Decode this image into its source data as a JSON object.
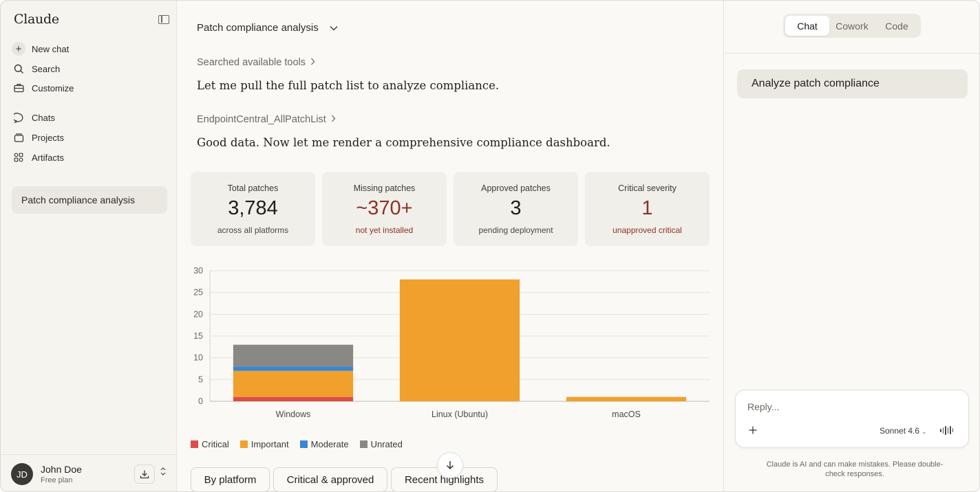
{
  "sidebar": {
    "brand": "Claude",
    "nav": [
      {
        "label": "New chat",
        "icon": "plus-icon"
      },
      {
        "label": "Search",
        "icon": "search-icon"
      },
      {
        "label": "Customize",
        "icon": "briefcase-icon"
      },
      {
        "label": "Chats",
        "icon": "chat-bubble-icon"
      },
      {
        "label": "Projects",
        "icon": "folder-icon"
      },
      {
        "label": "Artifacts",
        "icon": "grid-icon"
      }
    ],
    "recents": [
      {
        "label": "Patch compliance analysis"
      }
    ],
    "user": {
      "initials": "JD",
      "name": "John Doe",
      "plan": "Free plan"
    }
  },
  "main": {
    "title": "Patch compliance analysis",
    "tool1": "Searched available tools",
    "msg1": "Let me pull the full patch list to analyze compliance.",
    "tool2": "EndpointCentral_AllPatchList",
    "msg2": "Good data. Now let me render a comprehensive compliance dashboard.",
    "cards": [
      {
        "label": "Total patches",
        "value": "3,784",
        "sub": "across all platforms",
        "accent": false
      },
      {
        "label": "Missing patches",
        "value": "~370+",
        "sub": "not yet installed",
        "accent": true
      },
      {
        "label": "Approved patches",
        "value": "3",
        "sub": "pending deployment",
        "accent": false
      },
      {
        "label": "Critical severity",
        "value": "1",
        "sub": "unapproved critical",
        "accent": true
      }
    ],
    "pills": [
      "By platform",
      "Critical & approved",
      "Recent highlights"
    ]
  },
  "chart_data": {
    "type": "bar",
    "stacked": true,
    "categories": [
      "Windows",
      "Linux (Ubuntu)",
      "macOS"
    ],
    "series": [
      {
        "name": "Critical",
        "color": "#e04b47",
        "values": [
          1,
          0,
          0
        ]
      },
      {
        "name": "Important",
        "color": "#f0a02c",
        "values": [
          6,
          28,
          1
        ]
      },
      {
        "name": "Moderate",
        "color": "#3a86d4",
        "values": [
          1,
          0,
          0
        ]
      },
      {
        "name": "Unrated",
        "color": "#8a8883",
        "values": [
          5,
          0,
          0
        ]
      }
    ],
    "yticks": [
      "0",
      "5",
      "10",
      "15",
      "20",
      "25",
      "30"
    ],
    "ylim": [
      0,
      30
    ],
    "grid": true,
    "legend": "bottom-left"
  },
  "right": {
    "modes": [
      "Chat",
      "Cowork",
      "Code"
    ],
    "active_mode": "Chat",
    "user_message": "Analyze patch compliance",
    "composer": {
      "placeholder": "Reply...",
      "model": "Sonnet 4.6"
    },
    "disclaimer": "Claude is AI and can make mistakes. Please double-check responses."
  }
}
